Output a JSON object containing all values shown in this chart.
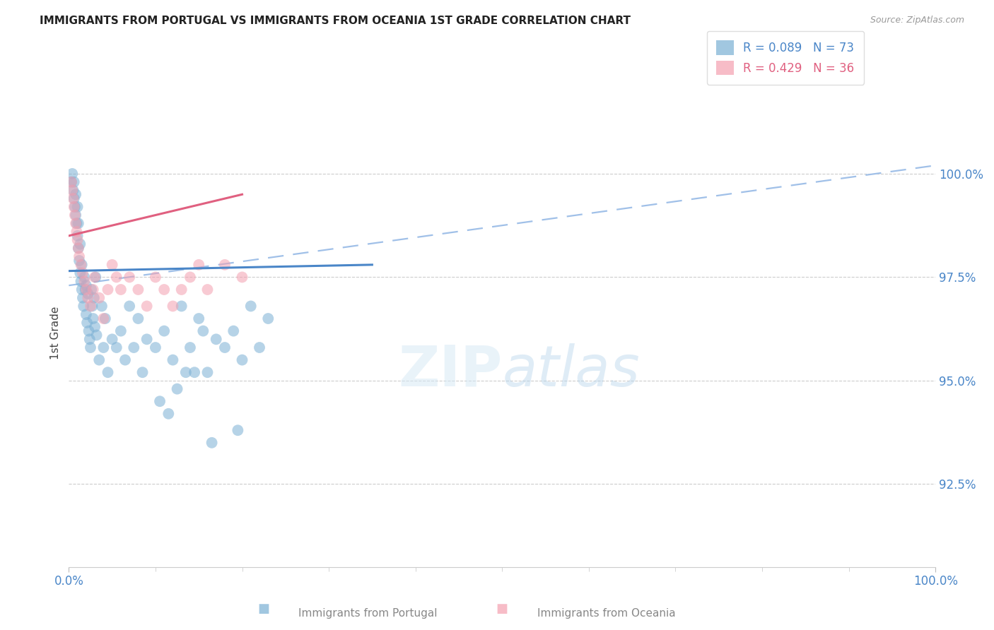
{
  "title": "IMMIGRANTS FROM PORTUGAL VS IMMIGRANTS FROM OCEANIA 1ST GRADE CORRELATION CHART",
  "source_text": "Source: ZipAtlas.com",
  "ylabel": "1st Grade",
  "ytick_labels": [
    "92.5%",
    "95.0%",
    "97.5%",
    "100.0%"
  ],
  "ytick_values": [
    92.5,
    95.0,
    97.5,
    100.0
  ],
  "xlim": [
    0.0,
    100.0
  ],
  "ylim": [
    90.5,
    101.8
  ],
  "legend_r_portugal": "R = 0.089",
  "legend_n_portugal": "N = 73",
  "legend_r_oceania": "R = 0.429",
  "legend_n_oceania": "N = 36",
  "color_portugal": "#7ab0d4",
  "color_oceania": "#f4a0b0",
  "color_trend_portugal": "#4a86c8",
  "color_trend_oceania": "#e06080",
  "color_dashed": "#a0c0e8",
  "color_axis_labels": "#4a86c8",
  "color_title": "#222222",
  "portugal_x": [
    0.3,
    0.4,
    0.5,
    0.6,
    0.6,
    0.7,
    0.8,
    0.8,
    0.9,
    1.0,
    1.0,
    1.1,
    1.1,
    1.2,
    1.3,
    1.3,
    1.4,
    1.5,
    1.5,
    1.6,
    1.7,
    1.8,
    1.9,
    2.0,
    2.0,
    2.1,
    2.2,
    2.3,
    2.4,
    2.5,
    2.6,
    2.7,
    2.8,
    2.9,
    3.0,
    3.1,
    3.2,
    3.5,
    3.8,
    4.0,
    4.2,
    4.5,
    5.0,
    5.5,
    6.0,
    6.5,
    7.0,
    7.5,
    8.0,
    8.5,
    9.0,
    10.0,
    11.0,
    12.0,
    13.0,
    14.0,
    15.0,
    16.0,
    17.0,
    18.0,
    19.0,
    20.0,
    21.0,
    22.0,
    23.0,
    14.5,
    15.5,
    10.5,
    11.5,
    12.5,
    13.5,
    16.5,
    19.5
  ],
  "portugal_y": [
    99.8,
    100.0,
    99.6,
    99.4,
    99.8,
    99.2,
    99.0,
    99.5,
    98.8,
    98.5,
    99.2,
    98.2,
    98.8,
    97.9,
    97.6,
    98.3,
    97.4,
    97.2,
    97.8,
    97.0,
    96.8,
    97.5,
    97.2,
    96.6,
    97.3,
    96.4,
    97.1,
    96.2,
    96.0,
    95.8,
    97.2,
    96.8,
    96.5,
    97.0,
    96.3,
    97.5,
    96.1,
    95.5,
    96.8,
    95.8,
    96.5,
    95.2,
    96.0,
    95.8,
    96.2,
    95.5,
    96.8,
    95.8,
    96.5,
    95.2,
    96.0,
    95.8,
    96.2,
    95.5,
    96.8,
    95.8,
    96.5,
    95.2,
    96.0,
    95.8,
    96.2,
    95.5,
    96.8,
    95.8,
    96.5,
    95.2,
    96.2,
    94.5,
    94.2,
    94.8,
    95.2,
    93.5,
    93.8
  ],
  "oceania_x": [
    0.3,
    0.4,
    0.5,
    0.6,
    0.7,
    0.8,
    0.9,
    1.0,
    1.1,
    1.2,
    1.4,
    1.6,
    1.8,
    2.0,
    2.2,
    2.5,
    2.8,
    3.0,
    3.5,
    4.0,
    4.5,
    5.0,
    5.5,
    6.0,
    7.0,
    8.0,
    9.0,
    10.0,
    11.0,
    12.0,
    13.0,
    14.0,
    15.0,
    16.0,
    18.0,
    20.0
  ],
  "oceania_y": [
    99.8,
    99.6,
    99.4,
    99.2,
    99.0,
    98.8,
    98.6,
    98.4,
    98.2,
    98.0,
    97.8,
    97.6,
    97.4,
    97.2,
    97.0,
    96.8,
    97.2,
    97.5,
    97.0,
    96.5,
    97.2,
    97.8,
    97.5,
    97.2,
    97.5,
    97.2,
    96.8,
    97.5,
    97.2,
    96.8,
    97.2,
    97.5,
    97.8,
    97.2,
    97.8,
    97.5
  ],
  "trend_portugal_x0": 0,
  "trend_portugal_y0": 97.65,
  "trend_portugal_x1": 35,
  "trend_portugal_y1": 97.8,
  "trend_oceania_x0": 0,
  "trend_oceania_y0": 98.5,
  "trend_oceania_x1": 20,
  "trend_oceania_y1": 99.5,
  "dashed_x0": 0,
  "dashed_y0": 97.3,
  "dashed_x1": 100,
  "dashed_y1": 100.2
}
